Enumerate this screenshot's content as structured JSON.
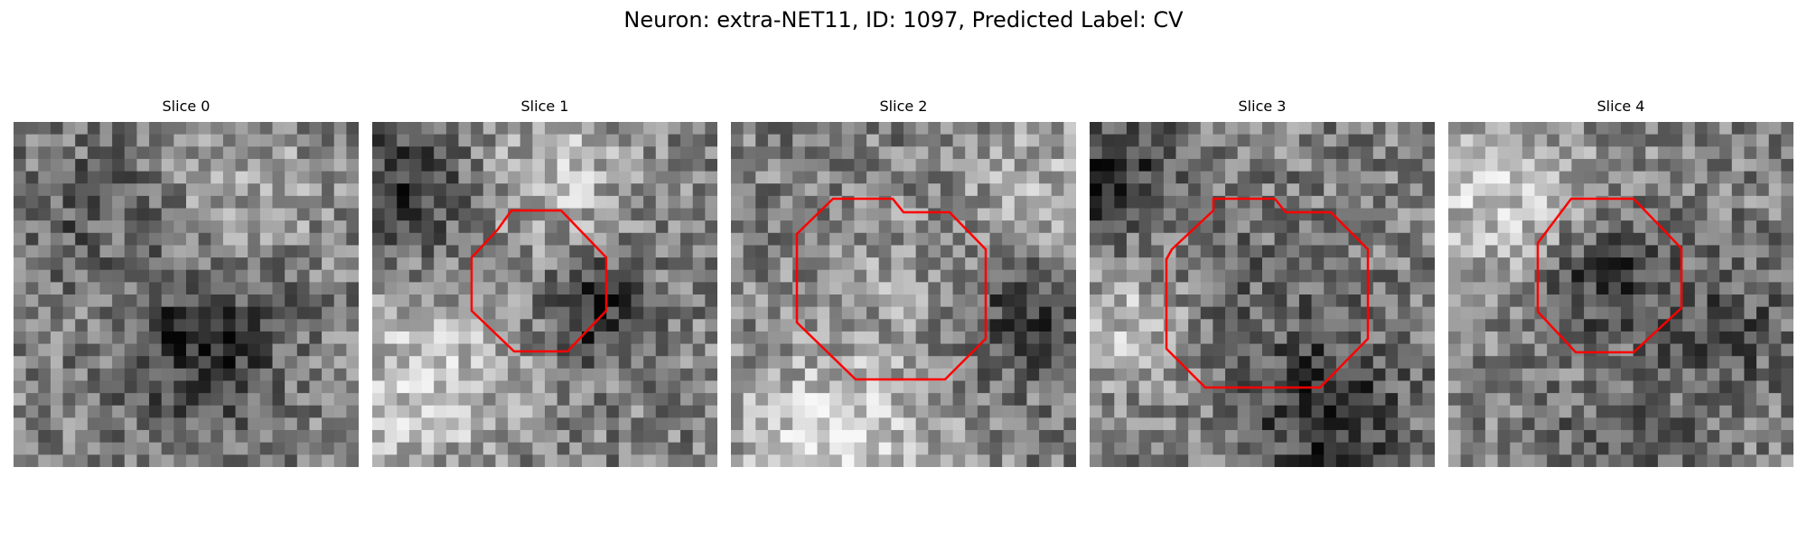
{
  "figure": {
    "title": "Neuron: extra-NET11, ID: 1097, Predicted Label: CV"
  },
  "colors": {
    "outline": "#ff0000",
    "background": "#ffffff"
  },
  "panels": [
    {
      "title": "Slice 0",
      "has_outline": false,
      "seed": 11
    },
    {
      "title": "Slice 1",
      "has_outline": true,
      "seed": 23
    },
    {
      "title": "Slice 2",
      "has_outline": true,
      "seed": 37
    },
    {
      "title": "Slice 3",
      "has_outline": true,
      "seed": 41
    },
    {
      "title": "Slice 4",
      "has_outline": true,
      "seed": 53
    }
  ]
}
